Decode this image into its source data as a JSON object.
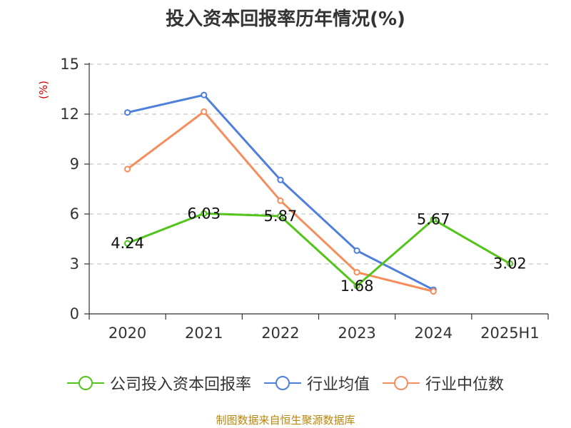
{
  "chart_data": {
    "type": "line",
    "title": "投入资本回报率历年情况(%)",
    "ylabel": "(%)",
    "categories": [
      "2020",
      "2021",
      "2022",
      "2023",
      "2024",
      "2025H1"
    ],
    "yticks": [
      0,
      3,
      6,
      9,
      12,
      15
    ],
    "ylim": [
      0,
      15
    ],
    "grid": true,
    "legend_position": "bottom",
    "series": [
      {
        "name": "公司投入资本回报率",
        "color": "#52c41a",
        "values": [
          4.24,
          6.03,
          5.87,
          1.68,
          5.67,
          3.02
        ],
        "labels": [
          "4.24",
          "6.03",
          "5.87",
          "1.68",
          "5.67",
          "3.02"
        ]
      },
      {
        "name": "行业均值",
        "color": "#4e7fdb",
        "values": [
          12.1,
          13.15,
          8.05,
          3.8,
          1.45,
          null
        ]
      },
      {
        "name": "行业中位数",
        "color": "#f58d5c",
        "values": [
          8.7,
          12.15,
          6.8,
          2.5,
          1.35,
          null
        ]
      }
    ]
  },
  "source": "制图数据来自恒生聚源数据库"
}
